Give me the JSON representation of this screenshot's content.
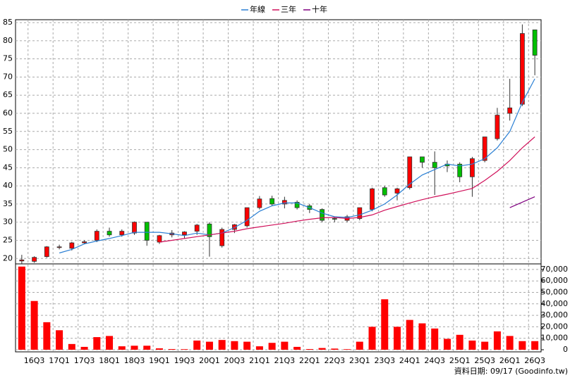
{
  "chart_data": {
    "type": "candlestick",
    "categories": [
      null,
      "16Q3",
      null,
      "17Q1",
      null,
      "17Q3",
      null,
      "18Q1",
      null,
      "18Q3",
      null,
      "19Q1",
      null,
      "19Q3",
      null,
      "20Q1",
      null,
      "20Q3",
      null,
      "21Q1",
      null,
      "21Q3",
      null,
      "22Q1",
      null,
      "22Q3",
      null,
      "23Q1",
      null,
      "23Q3",
      null,
      "24Q1",
      null,
      "24Q3",
      null,
      "25Q1",
      null,
      "25Q3",
      null,
      "26Q1",
      null,
      "26Q3"
    ],
    "open": [
      19.3,
      19.2,
      20.5,
      23,
      22.8,
      24.3,
      25,
      27.5,
      26.5,
      27,
      30,
      24.5,
      26.5,
      26.5,
      27.5,
      29.5,
      23.5,
      28,
      29,
      34,
      36.5,
      35,
      35.5,
      34.5,
      33.5,
      31,
      30.5,
      31,
      33.5,
      39.5,
      38,
      39.5,
      48,
      46.5,
      46,
      46,
      42.5,
      47,
      53,
      60,
      62.5,
      83
    ],
    "high": [
      21,
      20.6,
      23.4,
      23.8,
      24.6,
      25,
      28,
      28.5,
      28,
      30.2,
      30,
      26.5,
      27.8,
      27.5,
      29.5,
      30,
      28.5,
      29.5,
      34,
      37.2,
      37.3,
      37,
      36,
      35,
      33.8,
      31.5,
      32,
      34,
      39.5,
      40,
      39.5,
      48,
      48,
      49.5,
      47,
      46.5,
      48,
      53.5,
      61.5,
      69.5,
      84.5,
      83
    ],
    "low": [
      18.5,
      18.8,
      20.2,
      22.5,
      22.2,
      23.9,
      24.5,
      26,
      26,
      26.5,
      23.5,
      24,
      25.8,
      25.5,
      26.5,
      20.5,
      23,
      27,
      28.5,
      33.5,
      34.5,
      33.8,
      33.5,
      32.5,
      30,
      30,
      30,
      30.5,
      33,
      37,
      36,
      39,
      45,
      37.5,
      43.8,
      41,
      37,
      46.5,
      52.5,
      58,
      62,
      70.5
    ],
    "close": [
      19.6,
      20.3,
      23.2,
      23.2,
      24.3,
      24.6,
      27.5,
      26.5,
      27.5,
      30,
      25,
      26.3,
      27,
      27.3,
      29.2,
      26,
      28,
      29.3,
      34,
      36.4,
      35,
      36,
      34,
      33.5,
      30.5,
      30.8,
      31.5,
      34,
      39.2,
      37.5,
      39.2,
      48,
      46.5,
      45,
      45.5,
      42.5,
      47.5,
      53.5,
      59.5,
      61.5,
      82,
      76
    ],
    "up_color": "#ff0000",
    "down_color": "#00c000",
    "series": [
      {
        "name": "年線",
        "color": "#2a7fd4",
        "values": [
          null,
          null,
          null,
          21.5,
          22.5,
          24,
          24.8,
          25.5,
          26.3,
          27.2,
          27.2,
          27.2,
          26.8,
          26.3,
          27,
          26.5,
          27,
          28.5,
          30.5,
          33,
          34.5,
          35.3,
          35.3,
          34,
          32.5,
          31.5,
          31.3,
          32,
          33.3,
          35,
          37.5,
          40.5,
          43,
          44.5,
          46,
          45.5,
          46,
          47.5,
          50.5,
          55,
          63,
          69.5
        ]
      },
      {
        "name": "三年",
        "color": "#d0105a",
        "values": [
          null,
          null,
          null,
          null,
          null,
          null,
          null,
          null,
          null,
          null,
          null,
          24.5,
          25,
          25.5,
          26,
          26.5,
          27,
          27.5,
          28.2,
          28.7,
          29.2,
          29.7,
          30.3,
          30.8,
          31.2,
          31.3,
          31,
          31.3,
          32,
          33.3,
          34.3,
          35.3,
          36.2,
          37,
          37.7,
          38.5,
          39.3,
          41.5,
          44,
          47,
          50.5,
          53.5
        ]
      },
      {
        "name": "十年",
        "color": "#800080",
        "values": [
          null,
          null,
          null,
          null,
          null,
          null,
          null,
          null,
          null,
          null,
          null,
          null,
          null,
          null,
          null,
          null,
          null,
          null,
          null,
          null,
          null,
          null,
          null,
          null,
          null,
          null,
          null,
          null,
          null,
          null,
          null,
          null,
          null,
          null,
          null,
          null,
          null,
          null,
          null,
          34,
          35.5,
          37
        ]
      }
    ],
    "ylim": [
      18.5,
      85.8
    ],
    "yticks": [
      20,
      25,
      30,
      35,
      40,
      45,
      50,
      55,
      60,
      65,
      70,
      75,
      80,
      85
    ],
    "volume": {
      "color": "#ff0000",
      "values": [
        72500,
        42500,
        24000,
        17000,
        5000,
        2500,
        11000,
        12000,
        3000,
        3500,
        3500,
        1200,
        600,
        500,
        8000,
        7000,
        8500,
        7500,
        7000,
        3000,
        6000,
        7000,
        2500,
        600,
        1500,
        1000,
        500,
        7000,
        20000,
        44000,
        20000,
        26000,
        23000,
        18500,
        9500,
        13000,
        8000,
        7000,
        16000,
        12000,
        7500,
        7500
      ]
    },
    "y2lim": [
      0,
      73000
    ],
    "y2ticks": [
      0,
      {
        "value": 10000,
        "label": "10,000"
      },
      {
        "value": 20000,
        "label": "20,000"
      },
      {
        "value": 30000,
        "label": "30,000"
      },
      {
        "value": 40000,
        "label": "40,000"
      },
      {
        "value": 50000,
        "label": "50,000"
      },
      {
        "value": 60000,
        "label": "60,000"
      },
      {
        "value": 70000,
        "label": "70,000"
      }
    ],
    "grid": true,
    "legend": "top",
    "footnote": "資料日期: 09/17 (Goodinfo.tw)"
  }
}
